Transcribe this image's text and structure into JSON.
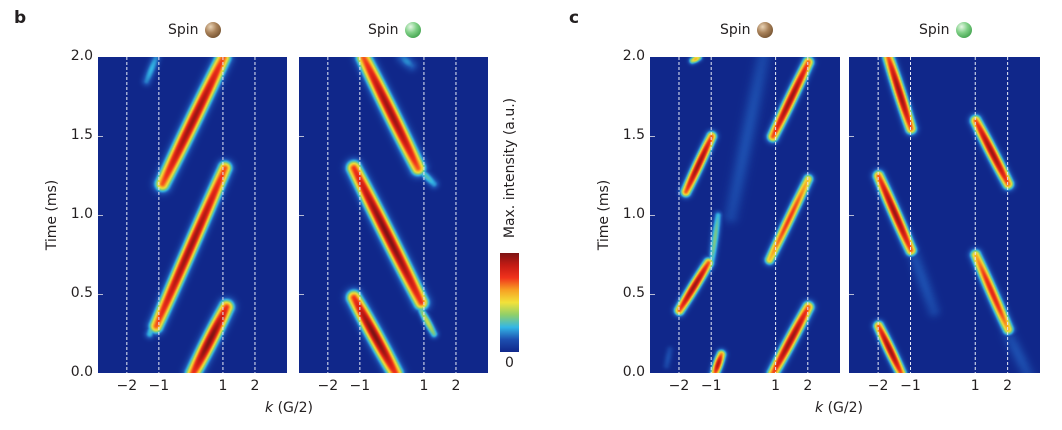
{
  "figure": {
    "panels": [
      {
        "letter": "b"
      },
      {
        "letter": "c"
      }
    ],
    "colorbar": {
      "label": "Max. intensity (a.u.)",
      "min_label": "0",
      "colors": [
        "#10278a",
        "#1d4fb0",
        "#33b6e6",
        "#8fcf6a",
        "#f2e23a",
        "#f7a123",
        "#f0321c",
        "#c41b14",
        "#7d1414"
      ]
    }
  },
  "chart_data": [
    {
      "type": "heatmap",
      "panel": "b",
      "title": "Spin",
      "spin_color": "brown",
      "xlabel": "k (G/2)",
      "xlabel_var": "k",
      "xlabel_unit": "(G/2)",
      "ylabel": "Time (ms)",
      "xlim": [
        -2.9,
        3.0
      ],
      "ylim": [
        0.0,
        2.0
      ],
      "xticks": [
        -2,
        -1,
        1,
        2
      ],
      "xtick_labels": [
        "−2",
        "−1",
        "1",
        "2"
      ],
      "yticks": [
        0.0,
        0.5,
        1.0,
        1.5,
        2.0
      ],
      "ytick_labels": [
        "0.0",
        "0.5",
        "1.0",
        "1.5",
        "2.0"
      ],
      "dashed_vlines": [
        -2,
        -1,
        1,
        2
      ],
      "streaks": [
        {
          "k0": 0.05,
          "t0": 0.0,
          "k1": 1.1,
          "t1": 0.42,
          "peak": 1.0,
          "width": 0.32
        },
        {
          "k0": -1.1,
          "t0": 0.3,
          "k1": 1.05,
          "t1": 1.3,
          "peak": 0.95,
          "width": 0.3
        },
        {
          "k0": -1.3,
          "t0": 0.25,
          "k1": -1.0,
          "t1": 0.4,
          "peak": 0.35,
          "width": 0.2
        },
        {
          "k0": -0.9,
          "t0": 1.2,
          "k1": 1.0,
          "t1": 2.0,
          "peak": 0.95,
          "width": 0.32
        },
        {
          "k0": -1.4,
          "t0": 1.85,
          "k1": -1.1,
          "t1": 2.0,
          "peak": 0.25,
          "width": 0.2
        }
      ]
    },
    {
      "type": "heatmap",
      "panel": "b",
      "title": "Spin",
      "spin_color": "green",
      "xlabel": "k (G/2)",
      "ylabel": "",
      "xlim": [
        -2.9,
        3.0
      ],
      "ylim": [
        0.0,
        2.0
      ],
      "xticks": [
        -2,
        -1,
        1,
        2
      ],
      "xtick_labels": [
        "−2",
        "−1",
        "1",
        "2"
      ],
      "dashed_vlines": [
        -2,
        -1,
        1,
        2
      ],
      "streaks": [
        {
          "k0": -1.2,
          "t0": 0.48,
          "k1": 0.1,
          "t1": 0.0,
          "peak": 1.0,
          "width": 0.32
        },
        {
          "k0": -1.2,
          "t0": 1.3,
          "k1": 0.9,
          "t1": 0.45,
          "peak": 1.0,
          "width": 0.32
        },
        {
          "k0": 0.9,
          "t0": 0.4,
          "k1": 1.3,
          "t1": 0.25,
          "peak": 0.45,
          "width": 0.18
        },
        {
          "k0": -0.9,
          "t0": 2.0,
          "k1": 0.8,
          "t1": 1.3,
          "peak": 0.95,
          "width": 0.32
        },
        {
          "k0": 0.8,
          "t0": 1.3,
          "k1": 1.3,
          "t1": 1.2,
          "peak": 0.3,
          "width": 0.2
        },
        {
          "k0": 0.3,
          "t0": 2.0,
          "k1": 0.6,
          "t1": 1.95,
          "peak": 0.2,
          "width": 0.25
        }
      ]
    },
    {
      "type": "heatmap",
      "panel": "c",
      "title": "Spin",
      "spin_color": "brown",
      "xlabel": "k (G/2)",
      "xlabel_var": "k",
      "xlabel_unit": "(G/2)",
      "ylabel": "Time (ms)",
      "xlim": [
        -2.9,
        3.0
      ],
      "ylim": [
        0.0,
        2.0
      ],
      "xticks": [
        -2,
        -1,
        1,
        2
      ],
      "xtick_labels": [
        "−2",
        "−1",
        "1",
        "2"
      ],
      "yticks": [
        0.0,
        0.5,
        1.0,
        1.5,
        2.0
      ],
      "ytick_labels": [
        "0.0",
        "0.5",
        "1.0",
        "1.5",
        "2.0"
      ],
      "dashed_vlines": [
        -2,
        -1,
        1,
        2
      ],
      "streaks": [
        {
          "k0": -0.9,
          "t0": 0.0,
          "k1": -0.7,
          "t1": 0.12,
          "peak": 0.9,
          "width": 0.2
        },
        {
          "k0": 0.9,
          "t0": 0.0,
          "k1": 2.0,
          "t1": 0.42,
          "peak": 0.95,
          "width": 0.25
        },
        {
          "k0": -2.0,
          "t0": 0.4,
          "k1": -1.1,
          "t1": 0.7,
          "peak": 0.95,
          "width": 0.22
        },
        {
          "k0": -1.0,
          "t0": 0.7,
          "k1": -0.8,
          "t1": 1.0,
          "peak": 0.35,
          "width": 0.18
        },
        {
          "k0": 0.8,
          "t0": 0.72,
          "k1": 2.0,
          "t1": 1.23,
          "peak": 0.75,
          "width": 0.22
        },
        {
          "k0": -1.8,
          "t0": 1.15,
          "k1": -1.0,
          "t1": 1.5,
          "peak": 0.95,
          "width": 0.22
        },
        {
          "k0": 0.9,
          "t0": 1.5,
          "k1": 2.0,
          "t1": 1.97,
          "peak": 0.95,
          "width": 0.24
        },
        {
          "k0": -1.6,
          "t0": 1.98,
          "k1": -1.4,
          "t1": 2.0,
          "peak": 0.6,
          "width": 0.15
        },
        {
          "k0": -0.4,
          "t0": 1.0,
          "k1": 0.6,
          "t1": 2.0,
          "peak": 0.12,
          "width": 0.35
        },
        {
          "k0": -2.4,
          "t0": 0.05,
          "k1": -2.3,
          "t1": 0.15,
          "peak": 0.12,
          "width": 0.15
        }
      ]
    },
    {
      "type": "heatmap",
      "panel": "c",
      "title": "Spin",
      "spin_color": "green",
      "xlabel": "k (G/2)",
      "ylabel": "",
      "xlim": [
        -2.9,
        3.0
      ],
      "ylim": [
        0.0,
        2.0
      ],
      "xticks": [
        -2,
        -1,
        1,
        2
      ],
      "xtick_labels": [
        "−2",
        "−1",
        "1",
        "2"
      ],
      "dashed_vlines": [
        -2,
        -1,
        1,
        2
      ],
      "streaks": [
        {
          "k0": -2.0,
          "t0": 0.3,
          "k1": -1.3,
          "t1": 0.0,
          "peak": 0.95,
          "width": 0.22
        },
        {
          "k0": -2.0,
          "t0": 1.25,
          "k1": -1.0,
          "t1": 0.78,
          "peak": 0.95,
          "width": 0.24
        },
        {
          "k0": 1.0,
          "t0": 0.75,
          "k1": 2.0,
          "t1": 0.28,
          "peak": 0.8,
          "width": 0.24
        },
        {
          "k0": -1.7,
          "t0": 2.0,
          "k1": -1.0,
          "t1": 1.55,
          "peak": 0.95,
          "width": 0.24
        },
        {
          "k0": 1.0,
          "t0": 1.6,
          "k1": 2.0,
          "t1": 1.2,
          "peak": 0.95,
          "width": 0.24
        },
        {
          "k0": -1.0,
          "t0": 0.8,
          "k1": -0.3,
          "t1": 0.4,
          "peak": 0.12,
          "width": 0.3
        },
        {
          "k0": 2.0,
          "t0": 0.25,
          "k1": 2.6,
          "t1": 0.0,
          "peak": 0.12,
          "width": 0.3
        }
      ]
    }
  ]
}
